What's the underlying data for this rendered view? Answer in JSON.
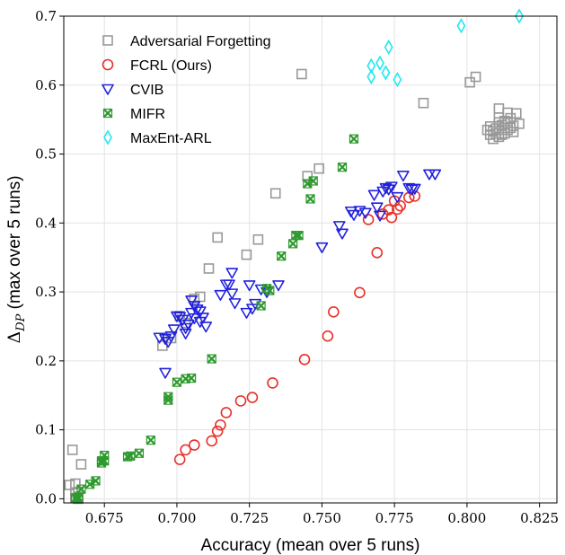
{
  "chart_data": {
    "type": "scatter",
    "title": "",
    "xlabel": "Accuracy (mean over 5 runs)",
    "ylabel_prefix": "Δ",
    "ylabel_sub": "DP",
    "ylabel_suffix": " (max over 5 runs)",
    "xlim": [
      0.661,
      0.831
    ],
    "ylim": [
      -0.006,
      0.7
    ],
    "x_ticks": [
      0.675,
      0.7,
      0.725,
      0.75,
      0.775,
      0.8,
      0.825
    ],
    "x_tick_labels": [
      "0.675",
      "0.700",
      "0.725",
      "0.750",
      "0.775",
      "0.800",
      "0.825"
    ],
    "y_ticks": [
      0.0,
      0.1,
      0.2,
      0.3,
      0.4,
      0.5,
      0.6,
      0.7
    ],
    "y_tick_labels": [
      "0.0",
      "0.1",
      "0.2",
      "0.3",
      "0.4",
      "0.5",
      "0.6",
      "0.7"
    ],
    "grid": true,
    "legend_position": "top-left",
    "series": [
      {
        "name": "Adversarial Forgetting",
        "marker": "square",
        "color": "#999999",
        "points": [
          [
            0.663,
            0.02
          ],
          [
            0.664,
            0.071
          ],
          [
            0.665,
            0.022
          ],
          [
            0.665,
            0.008
          ],
          [
            0.666,
            0.01
          ],
          [
            0.666,
            0.003
          ],
          [
            0.667,
            0.05
          ],
          [
            0.665,
            0.001
          ],
          [
            0.666,
            0.0
          ],
          [
            0.695,
            0.222
          ],
          [
            0.698,
            0.233
          ],
          [
            0.701,
            0.265
          ],
          [
            0.703,
            0.255
          ],
          [
            0.706,
            0.29
          ],
          [
            0.708,
            0.293
          ],
          [
            0.711,
            0.334
          ],
          [
            0.714,
            0.379
          ],
          [
            0.724,
            0.354
          ],
          [
            0.728,
            0.376
          ],
          [
            0.734,
            0.443
          ],
          [
            0.745,
            0.468
          ],
          [
            0.743,
            0.616
          ],
          [
            0.749,
            0.479
          ],
          [
            0.785,
            0.574
          ],
          [
            0.801,
            0.604
          ],
          [
            0.803,
            0.612
          ],
          [
            0.807,
            0.535
          ],
          [
            0.808,
            0.54
          ],
          [
            0.808,
            0.528
          ],
          [
            0.809,
            0.533
          ],
          [
            0.809,
            0.522
          ],
          [
            0.81,
            0.537
          ],
          [
            0.81,
            0.53
          ],
          [
            0.811,
            0.546
          ],
          [
            0.811,
            0.525
          ],
          [
            0.811,
            0.553
          ],
          [
            0.812,
            0.535
          ],
          [
            0.812,
            0.542
          ],
          [
            0.812,
            0.528
          ],
          [
            0.813,
            0.548
          ],
          [
            0.813,
            0.538
          ],
          [
            0.813,
            0.53
          ],
          [
            0.814,
            0.545
          ],
          [
            0.814,
            0.535
          ],
          [
            0.815,
            0.552
          ],
          [
            0.815,
            0.538
          ],
          [
            0.816,
            0.541
          ],
          [
            0.816,
            0.532
          ],
          [
            0.817,
            0.559
          ],
          [
            0.818,
            0.544
          ],
          [
            0.811,
            0.566
          ],
          [
            0.814,
            0.56
          ]
        ]
      },
      {
        "name": "FCRL (Ours)",
        "marker": "circle",
        "color": "#e8302a",
        "points": [
          [
            0.701,
            0.057
          ],
          [
            0.703,
            0.071
          ],
          [
            0.706,
            0.078
          ],
          [
            0.712,
            0.084
          ],
          [
            0.714,
            0.098
          ],
          [
            0.715,
            0.107
          ],
          [
            0.717,
            0.125
          ],
          [
            0.722,
            0.142
          ],
          [
            0.726,
            0.147
          ],
          [
            0.733,
            0.168
          ],
          [
            0.744,
            0.202
          ],
          [
            0.752,
            0.236
          ],
          [
            0.754,
            0.271
          ],
          [
            0.763,
            0.299
          ],
          [
            0.766,
            0.405
          ],
          [
            0.769,
            0.357
          ],
          [
            0.771,
            0.413
          ],
          [
            0.773,
            0.419
          ],
          [
            0.774,
            0.408
          ],
          [
            0.776,
            0.42
          ],
          [
            0.777,
            0.425
          ],
          [
            0.775,
            0.432
          ],
          [
            0.78,
            0.437
          ],
          [
            0.782,
            0.439
          ]
        ]
      },
      {
        "name": "CVIB",
        "marker": "triangle-down",
        "color": "#2222dd",
        "points": [
          [
            0.696,
            0.183
          ],
          [
            0.694,
            0.234
          ],
          [
            0.696,
            0.232
          ],
          [
            0.697,
            0.228
          ],
          [
            0.698,
            0.236
          ],
          [
            0.699,
            0.246
          ],
          [
            0.7,
            0.265
          ],
          [
            0.701,
            0.264
          ],
          [
            0.702,
            0.26
          ],
          [
            0.703,
            0.248
          ],
          [
            0.703,
            0.24
          ],
          [
            0.704,
            0.253
          ],
          [
            0.705,
            0.288
          ],
          [
            0.705,
            0.27
          ],
          [
            0.706,
            0.28
          ],
          [
            0.706,
            0.262
          ],
          [
            0.707,
            0.275
          ],
          [
            0.708,
            0.272
          ],
          [
            0.708,
            0.257
          ],
          [
            0.709,
            0.263
          ],
          [
            0.71,
            0.25
          ],
          [
            0.715,
            0.296
          ],
          [
            0.717,
            0.311
          ],
          [
            0.718,
            0.311
          ],
          [
            0.719,
            0.328
          ],
          [
            0.719,
            0.298
          ],
          [
            0.72,
            0.284
          ],
          [
            0.724,
            0.27
          ],
          [
            0.725,
            0.31
          ],
          [
            0.726,
            0.276
          ],
          [
            0.727,
            0.283
          ],
          [
            0.729,
            0.304
          ],
          [
            0.731,
            0.3
          ],
          [
            0.735,
            0.31
          ],
          [
            0.75,
            0.365
          ],
          [
            0.756,
            0.396
          ],
          [
            0.757,
            0.385
          ],
          [
            0.76,
            0.417
          ],
          [
            0.761,
            0.412
          ],
          [
            0.763,
            0.418
          ],
          [
            0.765,
            0.415
          ],
          [
            0.768,
            0.441
          ],
          [
            0.769,
            0.423
          ],
          [
            0.77,
            0.411
          ],
          [
            0.771,
            0.446
          ],
          [
            0.772,
            0.451
          ],
          [
            0.773,
            0.449
          ],
          [
            0.774,
            0.453
          ],
          [
            0.776,
            0.438
          ],
          [
            0.778,
            0.469
          ],
          [
            0.78,
            0.451
          ],
          [
            0.781,
            0.449
          ],
          [
            0.782,
            0.45
          ],
          [
            0.787,
            0.471
          ],
          [
            0.789,
            0.471
          ]
        ]
      },
      {
        "name": "MIFR",
        "marker": "x-square",
        "color": "#2e9a2e",
        "points": [
          [
            0.665,
            0.001
          ],
          [
            0.666,
            0.0
          ],
          [
            0.666,
            0.002
          ],
          [
            0.666,
            0.002
          ],
          [
            0.667,
            0.014
          ],
          [
            0.67,
            0.021
          ],
          [
            0.672,
            0.026
          ],
          [
            0.674,
            0.052
          ],
          [
            0.674,
            0.055
          ],
          [
            0.675,
            0.055
          ],
          [
            0.675,
            0.063
          ],
          [
            0.683,
            0.061
          ],
          [
            0.684,
            0.062
          ],
          [
            0.687,
            0.066
          ],
          [
            0.691,
            0.085
          ],
          [
            0.697,
            0.143
          ],
          [
            0.697,
            0.148
          ],
          [
            0.7,
            0.169
          ],
          [
            0.703,
            0.174
          ],
          [
            0.705,
            0.175
          ],
          [
            0.712,
            0.203
          ],
          [
            0.729,
            0.28
          ],
          [
            0.732,
            0.302
          ],
          [
            0.731,
            0.305
          ],
          [
            0.736,
            0.352
          ],
          [
            0.74,
            0.37
          ],
          [
            0.741,
            0.382
          ],
          [
            0.742,
            0.382
          ],
          [
            0.746,
            0.435
          ],
          [
            0.745,
            0.457
          ],
          [
            0.747,
            0.461
          ],
          [
            0.757,
            0.481
          ],
          [
            0.761,
            0.522
          ]
        ]
      },
      {
        "name": "MaxEnt-ARL",
        "marker": "diamond",
        "color": "#22e8ee",
        "points": [
          [
            0.767,
            0.612
          ],
          [
            0.767,
            0.628
          ],
          [
            0.77,
            0.632
          ],
          [
            0.772,
            0.618
          ],
          [
            0.773,
            0.655
          ],
          [
            0.776,
            0.608
          ],
          [
            0.798,
            0.686
          ],
          [
            0.818,
            0.7
          ]
        ]
      }
    ]
  }
}
